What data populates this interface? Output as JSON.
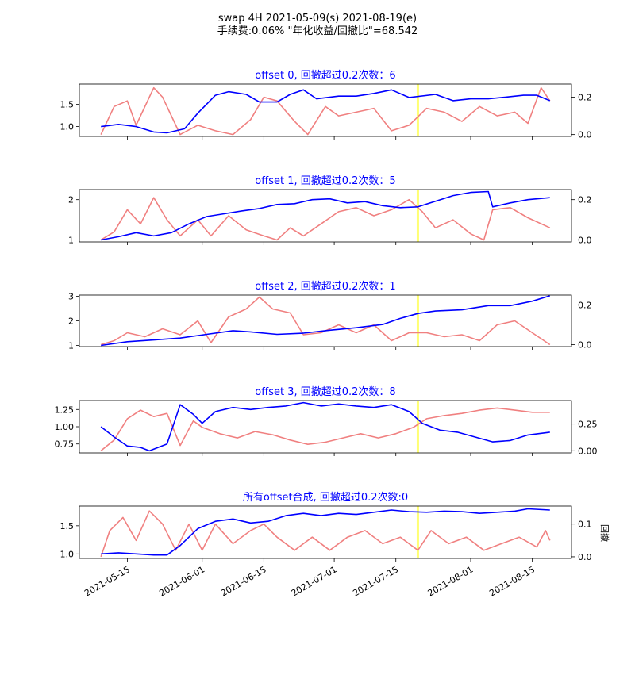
{
  "figure": {
    "title_line1": "swap 4H 2021-05-09(s) 2021-08-19(e)",
    "title_line2": "手续费:0.06% \"年化收益/回撤比\"=68.542",
    "right_ylabel": "回撤",
    "x_ticks": [
      "2021-05-15",
      "2021-06-01",
      "2021-06-15",
      "2021-07-01",
      "2021-07-15",
      "2021-08-01",
      "2021-08-15"
    ],
    "x_range": [
      "2021-05-09",
      "2021-08-19"
    ],
    "highlight_date": "2021-07-20",
    "colors": {
      "equity": "#0000ff",
      "drawdown": "#f08080",
      "title": "#0000ff",
      "highlight": "#ffff66"
    }
  },
  "chart_data": [
    {
      "type": "line",
      "title": "offset 0, 回撤超过0.2次数：6",
      "left_yticks": [
        1.0,
        1.5
      ],
      "left_ylim": [
        0.78,
        1.95
      ],
      "right_yticks": [
        0.0,
        0.2
      ],
      "right_ylim": [
        -0.01,
        0.27
      ],
      "equity": [
        [
          "2021-05-09",
          1.0
        ],
        [
          "2021-05-13",
          1.05
        ],
        [
          "2021-05-17",
          1.0
        ],
        [
          "2021-05-21",
          0.88
        ],
        [
          "2021-05-24",
          0.86
        ],
        [
          "2021-05-28",
          0.95
        ],
        [
          "2021-05-31",
          1.3
        ],
        [
          "2021-06-04",
          1.7
        ],
        [
          "2021-06-07",
          1.78
        ],
        [
          "2021-06-11",
          1.72
        ],
        [
          "2021-06-14",
          1.55
        ],
        [
          "2021-06-18",
          1.55
        ],
        [
          "2021-06-21",
          1.72
        ],
        [
          "2021-06-24",
          1.82
        ],
        [
          "2021-06-27",
          1.62
        ],
        [
          "2021-07-02",
          1.68
        ],
        [
          "2021-07-06",
          1.68
        ],
        [
          "2021-07-10",
          1.74
        ],
        [
          "2021-07-14",
          1.82
        ],
        [
          "2021-07-18",
          1.65
        ],
        [
          "2021-07-24",
          1.72
        ],
        [
          "2021-07-28",
          1.58
        ],
        [
          "2021-08-01",
          1.62
        ],
        [
          "2021-08-05",
          1.62
        ],
        [
          "2021-08-09",
          1.66
        ],
        [
          "2021-08-13",
          1.7
        ],
        [
          "2021-08-16",
          1.7
        ],
        [
          "2021-08-19",
          1.58
        ]
      ],
      "drawdown": [
        [
          "2021-05-09",
          0.0
        ],
        [
          "2021-05-12",
          0.15
        ],
        [
          "2021-05-15",
          0.18
        ],
        [
          "2021-05-17",
          0.05
        ],
        [
          "2021-05-21",
          0.25
        ],
        [
          "2021-05-23",
          0.2
        ],
        [
          "2021-05-27",
          0.0
        ],
        [
          "2021-05-31",
          0.05
        ],
        [
          "2021-06-04",
          0.02
        ],
        [
          "2021-06-08",
          0.0
        ],
        [
          "2021-06-12",
          0.08
        ],
        [
          "2021-06-15",
          0.2
        ],
        [
          "2021-06-18",
          0.18
        ],
        [
          "2021-06-22",
          0.07
        ],
        [
          "2021-06-25",
          0.0
        ],
        [
          "2021-06-29",
          0.15
        ],
        [
          "2021-07-02",
          0.1
        ],
        [
          "2021-07-06",
          0.12
        ],
        [
          "2021-07-10",
          0.14
        ],
        [
          "2021-07-14",
          0.02
        ],
        [
          "2021-07-18",
          0.05
        ],
        [
          "2021-07-22",
          0.14
        ],
        [
          "2021-07-26",
          0.12
        ],
        [
          "2021-07-30",
          0.07
        ],
        [
          "2021-08-03",
          0.15
        ],
        [
          "2021-08-07",
          0.1
        ],
        [
          "2021-08-11",
          0.12
        ],
        [
          "2021-08-14",
          0.06
        ],
        [
          "2021-08-17",
          0.25
        ],
        [
          "2021-08-19",
          0.18
        ]
      ]
    },
    {
      "type": "line",
      "title": "offset 1, 回撤超过0.2次数：5",
      "left_yticks": [
        1,
        2
      ],
      "left_ylim": [
        0.95,
        2.25
      ],
      "right_yticks": [
        0.0,
        0.2
      ],
      "right_ylim": [
        -0.01,
        0.25
      ],
      "equity": [
        [
          "2021-05-09",
          1.0
        ],
        [
          "2021-05-13",
          1.08
        ],
        [
          "2021-05-17",
          1.18
        ],
        [
          "2021-05-21",
          1.1
        ],
        [
          "2021-05-25",
          1.18
        ],
        [
          "2021-05-29",
          1.4
        ],
        [
          "2021-06-02",
          1.58
        ],
        [
          "2021-06-06",
          1.65
        ],
        [
          "2021-06-10",
          1.72
        ],
        [
          "2021-06-14",
          1.78
        ],
        [
          "2021-06-18",
          1.88
        ],
        [
          "2021-06-22",
          1.9
        ],
        [
          "2021-06-26",
          2.0
        ],
        [
          "2021-06-30",
          2.02
        ],
        [
          "2021-07-04",
          1.92
        ],
        [
          "2021-07-08",
          1.95
        ],
        [
          "2021-07-12",
          1.85
        ],
        [
          "2021-07-16",
          1.8
        ],
        [
          "2021-07-20",
          1.82
        ],
        [
          "2021-07-24",
          1.96
        ],
        [
          "2021-07-28",
          2.1
        ],
        [
          "2021-08-01",
          2.18
        ],
        [
          "2021-08-05",
          2.2
        ],
        [
          "2021-08-06",
          1.82
        ],
        [
          "2021-08-10",
          1.92
        ],
        [
          "2021-08-14",
          2.0
        ],
        [
          "2021-08-19",
          2.05
        ]
      ],
      "drawdown": [
        [
          "2021-05-09",
          0.0
        ],
        [
          "2021-05-12",
          0.04
        ],
        [
          "2021-05-15",
          0.15
        ],
        [
          "2021-05-18",
          0.08
        ],
        [
          "2021-05-21",
          0.21
        ],
        [
          "2021-05-24",
          0.1
        ],
        [
          "2021-05-27",
          0.02
        ],
        [
          "2021-05-31",
          0.1
        ],
        [
          "2021-06-03",
          0.02
        ],
        [
          "2021-06-07",
          0.12
        ],
        [
          "2021-06-11",
          0.05
        ],
        [
          "2021-06-15",
          0.02
        ],
        [
          "2021-06-18",
          0.0
        ],
        [
          "2021-06-21",
          0.06
        ],
        [
          "2021-06-24",
          0.02
        ],
        [
          "2021-06-28",
          0.08
        ],
        [
          "2021-07-02",
          0.14
        ],
        [
          "2021-07-06",
          0.16
        ],
        [
          "2021-07-10",
          0.12
        ],
        [
          "2021-07-14",
          0.15
        ],
        [
          "2021-07-18",
          0.2
        ],
        [
          "2021-07-21",
          0.14
        ],
        [
          "2021-07-24",
          0.06
        ],
        [
          "2021-07-28",
          0.1
        ],
        [
          "2021-08-01",
          0.03
        ],
        [
          "2021-08-04",
          0.0
        ],
        [
          "2021-08-06",
          0.15
        ],
        [
          "2021-08-10",
          0.16
        ],
        [
          "2021-08-14",
          0.11
        ],
        [
          "2021-08-19",
          0.06
        ]
      ]
    },
    {
      "type": "line",
      "title": "offset 2, 回撤超过0.2次数：1",
      "left_yticks": [
        1,
        2,
        3
      ],
      "left_ylim": [
        0.95,
        3.05
      ],
      "right_yticks": [
        0.0,
        0.2
      ],
      "right_ylim": [
        -0.01,
        0.25
      ],
      "equity": [
        [
          "2021-05-09",
          1.0
        ],
        [
          "2021-05-15",
          1.15
        ],
        [
          "2021-05-21",
          1.22
        ],
        [
          "2021-05-27",
          1.3
        ],
        [
          "2021-06-02",
          1.45
        ],
        [
          "2021-06-08",
          1.6
        ],
        [
          "2021-06-12",
          1.55
        ],
        [
          "2021-06-18",
          1.45
        ],
        [
          "2021-06-24",
          1.5
        ],
        [
          "2021-06-30",
          1.62
        ],
        [
          "2021-07-06",
          1.72
        ],
        [
          "2021-07-12",
          1.85
        ],
        [
          "2021-07-16",
          2.1
        ],
        [
          "2021-07-20",
          2.3
        ],
        [
          "2021-07-24",
          2.4
        ],
        [
          "2021-07-30",
          2.45
        ],
        [
          "2021-08-05",
          2.62
        ],
        [
          "2021-08-10",
          2.62
        ],
        [
          "2021-08-15",
          2.8
        ],
        [
          "2021-08-19",
          3.02
        ]
      ],
      "drawdown": [
        [
          "2021-05-09",
          0.0
        ],
        [
          "2021-05-12",
          0.02
        ],
        [
          "2021-05-15",
          0.06
        ],
        [
          "2021-05-19",
          0.04
        ],
        [
          "2021-05-23",
          0.08
        ],
        [
          "2021-05-27",
          0.05
        ],
        [
          "2021-05-31",
          0.12
        ],
        [
          "2021-06-03",
          0.01
        ],
        [
          "2021-06-07",
          0.14
        ],
        [
          "2021-06-11",
          0.18
        ],
        [
          "2021-06-14",
          0.24
        ],
        [
          "2021-06-17",
          0.18
        ],
        [
          "2021-06-21",
          0.16
        ],
        [
          "2021-06-24",
          0.05
        ],
        [
          "2021-06-28",
          0.06
        ],
        [
          "2021-07-02",
          0.1
        ],
        [
          "2021-07-06",
          0.06
        ],
        [
          "2021-07-10",
          0.1
        ],
        [
          "2021-07-14",
          0.02
        ],
        [
          "2021-07-18",
          0.06
        ],
        [
          "2021-07-22",
          0.06
        ],
        [
          "2021-07-26",
          0.04
        ],
        [
          "2021-07-30",
          0.05
        ],
        [
          "2021-08-03",
          0.02
        ],
        [
          "2021-08-07",
          0.1
        ],
        [
          "2021-08-11",
          0.12
        ],
        [
          "2021-08-15",
          0.06
        ],
        [
          "2021-08-19",
          0.0
        ]
      ]
    },
    {
      "type": "line",
      "title": "offset 3, 回撤超过0.2次数：8",
      "left_yticks": [
        0.75,
        1.0,
        1.25
      ],
      "left_ylim": [
        0.62,
        1.38
      ],
      "right_yticks": [
        0.0,
        0.25
      ],
      "right_ylim": [
        -0.02,
        0.47
      ],
      "equity": [
        [
          "2021-05-09",
          1.0
        ],
        [
          "2021-05-12",
          0.85
        ],
        [
          "2021-05-15",
          0.72
        ],
        [
          "2021-05-18",
          0.7
        ],
        [
          "2021-05-20",
          0.65
        ],
        [
          "2021-05-24",
          0.75
        ],
        [
          "2021-05-27",
          1.32
        ],
        [
          "2021-05-30",
          1.18
        ],
        [
          "2021-06-01",
          1.05
        ],
        [
          "2021-06-04",
          1.22
        ],
        [
          "2021-06-08",
          1.28
        ],
        [
          "2021-06-12",
          1.25
        ],
        [
          "2021-06-16",
          1.28
        ],
        [
          "2021-06-20",
          1.3
        ],
        [
          "2021-06-24",
          1.35
        ],
        [
          "2021-06-28",
          1.3
        ],
        [
          "2021-07-02",
          1.33
        ],
        [
          "2021-07-06",
          1.3
        ],
        [
          "2021-07-10",
          1.28
        ],
        [
          "2021-07-14",
          1.32
        ],
        [
          "2021-07-18",
          1.22
        ],
        [
          "2021-07-21",
          1.05
        ],
        [
          "2021-07-25",
          0.95
        ],
        [
          "2021-07-29",
          0.92
        ],
        [
          "2021-08-02",
          0.85
        ],
        [
          "2021-08-06",
          0.78
        ],
        [
          "2021-08-10",
          0.8
        ],
        [
          "2021-08-14",
          0.88
        ],
        [
          "2021-08-19",
          0.92
        ]
      ],
      "drawdown": [
        [
          "2021-05-09",
          0.0
        ],
        [
          "2021-05-12",
          0.1
        ],
        [
          "2021-05-15",
          0.3
        ],
        [
          "2021-05-18",
          0.38
        ],
        [
          "2021-05-21",
          0.32
        ],
        [
          "2021-05-24",
          0.35
        ],
        [
          "2021-05-27",
          0.05
        ],
        [
          "2021-05-30",
          0.28
        ],
        [
          "2021-06-01",
          0.22
        ],
        [
          "2021-06-05",
          0.16
        ],
        [
          "2021-06-09",
          0.12
        ],
        [
          "2021-06-13",
          0.18
        ],
        [
          "2021-06-17",
          0.15
        ],
        [
          "2021-06-21",
          0.1
        ],
        [
          "2021-06-25",
          0.06
        ],
        [
          "2021-06-29",
          0.08
        ],
        [
          "2021-07-03",
          0.12
        ],
        [
          "2021-07-07",
          0.16
        ],
        [
          "2021-07-11",
          0.12
        ],
        [
          "2021-07-15",
          0.16
        ],
        [
          "2021-07-19",
          0.22
        ],
        [
          "2021-07-22",
          0.3
        ],
        [
          "2021-07-26",
          0.33
        ],
        [
          "2021-07-30",
          0.35
        ],
        [
          "2021-08-03",
          0.38
        ],
        [
          "2021-08-07",
          0.4
        ],
        [
          "2021-08-11",
          0.38
        ],
        [
          "2021-08-15",
          0.36
        ],
        [
          "2021-08-19",
          0.36
        ]
      ]
    },
    {
      "type": "line",
      "title": "所有offset合成, 回撤超过0.2次数:0",
      "left_yticks": [
        1.0,
        1.5
      ],
      "left_ylim": [
        0.92,
        1.85
      ],
      "right_yticks": [
        0.0,
        0.1
      ],
      "right_ylim": [
        -0.005,
        0.155
      ],
      "equity": [
        [
          "2021-05-09",
          1.0
        ],
        [
          "2021-05-13",
          1.02
        ],
        [
          "2021-05-17",
          1.0
        ],
        [
          "2021-05-21",
          0.98
        ],
        [
          "2021-05-24",
          0.98
        ],
        [
          "2021-05-27",
          1.15
        ],
        [
          "2021-05-31",
          1.45
        ],
        [
          "2021-06-04",
          1.58
        ],
        [
          "2021-06-08",
          1.62
        ],
        [
          "2021-06-12",
          1.55
        ],
        [
          "2021-06-16",
          1.58
        ],
        [
          "2021-06-20",
          1.68
        ],
        [
          "2021-06-24",
          1.72
        ],
        [
          "2021-06-28",
          1.68
        ],
        [
          "2021-07-02",
          1.72
        ],
        [
          "2021-07-06",
          1.7
        ],
        [
          "2021-07-10",
          1.74
        ],
        [
          "2021-07-14",
          1.78
        ],
        [
          "2021-07-18",
          1.75
        ],
        [
          "2021-07-22",
          1.74
        ],
        [
          "2021-07-26",
          1.76
        ],
        [
          "2021-07-30",
          1.75
        ],
        [
          "2021-08-03",
          1.72
        ],
        [
          "2021-08-07",
          1.74
        ],
        [
          "2021-08-11",
          1.76
        ],
        [
          "2021-08-14",
          1.8
        ],
        [
          "2021-08-19",
          1.78
        ]
      ],
      "drawdown": [
        [
          "2021-05-09",
          0.0
        ],
        [
          "2021-05-11",
          0.08
        ],
        [
          "2021-05-14",
          0.12
        ],
        [
          "2021-05-17",
          0.05
        ],
        [
          "2021-05-20",
          0.14
        ],
        [
          "2021-05-23",
          0.1
        ],
        [
          "2021-05-26",
          0.02
        ],
        [
          "2021-05-29",
          0.1
        ],
        [
          "2021-06-01",
          0.02
        ],
        [
          "2021-06-04",
          0.1
        ],
        [
          "2021-06-08",
          0.04
        ],
        [
          "2021-06-12",
          0.08
        ],
        [
          "2021-06-15",
          0.1
        ],
        [
          "2021-06-18",
          0.06
        ],
        [
          "2021-06-22",
          0.02
        ],
        [
          "2021-06-26",
          0.06
        ],
        [
          "2021-06-30",
          0.02
        ],
        [
          "2021-07-04",
          0.06
        ],
        [
          "2021-07-08",
          0.08
        ],
        [
          "2021-07-12",
          0.04
        ],
        [
          "2021-07-16",
          0.06
        ],
        [
          "2021-07-20",
          0.02
        ],
        [
          "2021-07-23",
          0.08
        ],
        [
          "2021-07-27",
          0.04
        ],
        [
          "2021-07-31",
          0.06
        ],
        [
          "2021-08-04",
          0.02
        ],
        [
          "2021-08-08",
          0.04
        ],
        [
          "2021-08-12",
          0.06
        ],
        [
          "2021-08-16",
          0.03
        ],
        [
          "2021-08-18",
          0.08
        ],
        [
          "2021-08-19",
          0.05
        ]
      ]
    }
  ]
}
